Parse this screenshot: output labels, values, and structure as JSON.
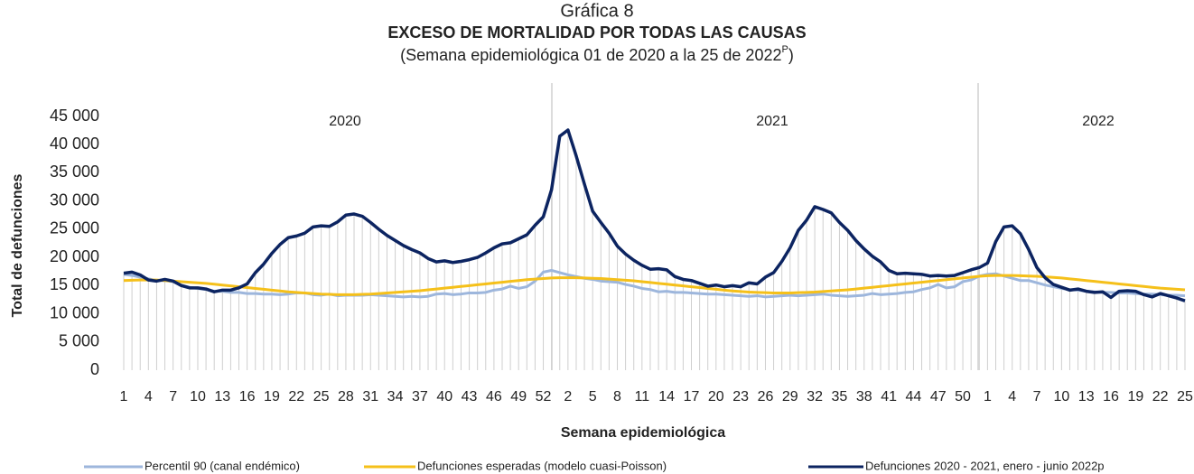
{
  "chart_data": {
    "type": "line",
    "title_top": "Gráfica 8",
    "title": "EXCESO DE MORTALIDAD POR TODAS LAS CAUSAS",
    "subtitle": [
      "(Semana epidemiológica 01 de 2020 a la 25 de 2022",
      "P",
      ")"
    ],
    "x_label": "Semana epidemiológica",
    "y_label": "Total de defunciones",
    "years": [
      "2020",
      "2021",
      "2022"
    ],
    "categories": [
      "1",
      null,
      null,
      "4",
      null,
      null,
      "7",
      null,
      null,
      "10",
      null,
      null,
      "13",
      null,
      null,
      "16",
      null,
      null,
      "19",
      null,
      null,
      "22",
      null,
      null,
      "25",
      null,
      null,
      "28",
      null,
      null,
      "31",
      null,
      null,
      "34",
      null,
      null,
      "37",
      null,
      null,
      "40",
      null,
      null,
      "43",
      null,
      null,
      "46",
      null,
      null,
      "49",
      null,
      null,
      "52",
      null,
      null,
      "2",
      null,
      null,
      "5",
      null,
      null,
      "8",
      null,
      null,
      "11",
      null,
      null,
      "14",
      null,
      null,
      "17",
      null,
      null,
      "20",
      null,
      null,
      "23",
      null,
      null,
      "26",
      null,
      null,
      "29",
      null,
      null,
      "32",
      null,
      null,
      "35",
      null,
      null,
      "38",
      null,
      null,
      "41",
      null,
      null,
      "44",
      null,
      null,
      "47",
      null,
      null,
      "50",
      null,
      null,
      "1",
      null,
      null,
      "4",
      null,
      null,
      "7",
      null,
      null,
      "10",
      null,
      null,
      "13",
      null,
      null,
      "16",
      null,
      null,
      "19",
      null,
      null,
      "22",
      null,
      null,
      "25"
    ],
    "ylim": [
      0,
      45000
    ],
    "yticks": [
      0,
      {
        "value": 5000,
        "label": "5 000"
      },
      {
        "value": 10000,
        "label": "10 000"
      },
      {
        "value": 15000,
        "label": "15 000"
      },
      {
        "value": 20000,
        "label": "20 000"
      },
      {
        "value": 25000,
        "label": "25 000"
      },
      {
        "value": 30000,
        "label": "30 000"
      },
      {
        "value": 35000,
        "label": "35 000"
      },
      {
        "value": 40000,
        "label": "40 000"
      },
      {
        "value": 45000,
        "label": "45 000"
      }
    ],
    "series": [
      {
        "name": "Percentil 90 (canal endémico)",
        "color": "#9db6dc",
        "values": [
          17000,
          16800,
          16500,
          16200,
          15900,
          15900,
          15700,
          15100,
          14700,
          14500,
          14300,
          14000,
          14000,
          13800,
          13800,
          13600,
          13600,
          13500,
          13500,
          13400,
          13500,
          13700,
          13700,
          13400,
          13300,
          13500,
          13200,
          13300,
          13300,
          13300,
          13400,
          13300,
          13200,
          13100,
          13000,
          13100,
          13000,
          13100,
          13500,
          13600,
          13400,
          13500,
          13700,
          13700,
          13800,
          14200,
          14400,
          14900,
          14500,
          14800,
          15800,
          17400,
          17700,
          17300,
          16900,
          16600,
          16300,
          16100,
          15800,
          15700,
          15600,
          15200,
          14900,
          14500,
          14300,
          13900,
          14000,
          13800,
          13800,
          13700,
          13600,
          13500,
          13500,
          13400,
          13300,
          13200,
          13100,
          13200,
          13000,
          13100,
          13200,
          13300,
          13200,
          13300,
          13400,
          13500,
          13300,
          13200,
          13100,
          13200,
          13300,
          13600,
          13400,
          13500,
          13600,
          13800,
          13900,
          14300,
          14600,
          15200,
          14600,
          14800,
          15700,
          16000,
          16700,
          17000,
          17100,
          16700,
          16300,
          15900,
          15900,
          15500,
          15100,
          14800,
          14500,
          14300,
          14200,
          14000,
          13900,
          13800,
          13800,
          13700,
          13700,
          13600,
          13500,
          13500,
          13400,
          13300,
          13300,
          13200
        ]
      },
      {
        "name": "Defunciones esperadas (modelo cuasi-Poisson)",
        "color": "#f5c01a",
        "values": [
          15900,
          15950,
          16000,
          16000,
          16000,
          15900,
          15800,
          15700,
          15600,
          15500,
          15400,
          15250,
          15100,
          14950,
          14800,
          14650,
          14500,
          14350,
          14200,
          14050,
          13900,
          13800,
          13700,
          13600,
          13500,
          13450,
          13400,
          13400,
          13400,
          13450,
          13500,
          13600,
          13700,
          13800,
          13900,
          14000,
          14100,
          14250,
          14400,
          14550,
          14700,
          14850,
          15000,
          15150,
          15300,
          15450,
          15600,
          15750,
          15900,
          16050,
          16150,
          16250,
          16350,
          16400,
          16400,
          16400,
          16350,
          16300,
          16250,
          16150,
          16050,
          15950,
          15850,
          15700,
          15550,
          15400,
          15250,
          15100,
          14950,
          14800,
          14650,
          14500,
          14350,
          14200,
          14050,
          13950,
          13850,
          13800,
          13750,
          13700,
          13700,
          13700,
          13750,
          13800,
          13850,
          13950,
          14050,
          14150,
          14250,
          14400,
          14550,
          14700,
          14850,
          15000,
          15150,
          15300,
          15450,
          15600,
          15750,
          15900,
          16050,
          16200,
          16350,
          16500,
          16650,
          16750,
          16800,
          16800,
          16800,
          16750,
          16700,
          16650,
          16550,
          16450,
          16350,
          16200,
          16050,
          15900,
          15750,
          15600,
          15450,
          15300,
          15150,
          15000,
          14850,
          14700,
          14550,
          14450,
          14350,
          14250
        ]
      },
      {
        "name": "Defunciones 2020 - 2021, enero - junio 2022p",
        "color": "#0c2461",
        "values": [
          17200,
          17400,
          16900,
          16000,
          15800,
          16100,
          15800,
          15000,
          14600,
          14600,
          14400,
          13900,
          14200,
          14200,
          14600,
          15300,
          17300,
          18800,
          20700,
          22300,
          23500,
          23800,
          24300,
          25400,
          25600,
          25500,
          26300,
          27500,
          27700,
          27300,
          26200,
          25000,
          23900,
          23000,
          22100,
          21400,
          20800,
          19800,
          19200,
          19400,
          19100,
          19300,
          19600,
          20000,
          20800,
          21700,
          22400,
          22600,
          23300,
          24000,
          25700,
          27200,
          32000,
          41500,
          42600,
          38000,
          33000,
          28200,
          26200,
          24300,
          22000,
          20600,
          19500,
          18600,
          17900,
          18000,
          17800,
          16600,
          16100,
          15900,
          15400,
          14900,
          15100,
          14800,
          15000,
          14800,
          15500,
          15300,
          16500,
          17300,
          19300,
          21700,
          24800,
          26600,
          29000,
          28500,
          27900,
          26200,
          24800,
          23000,
          21500,
          20200,
          19200,
          17700,
          17100,
          17200,
          17100,
          17000,
          16700,
          16800,
          16700,
          16800,
          17300,
          17800,
          18200,
          19000,
          22800,
          25400,
          25600,
          24200,
          21400,
          18200,
          16400,
          15200,
          14700,
          14200,
          14400,
          14000,
          13800,
          13900,
          12900,
          14000,
          14100,
          14000,
          13400,
          13000,
          13600,
          13200,
          12800,
          12300
        ]
      }
    ]
  }
}
